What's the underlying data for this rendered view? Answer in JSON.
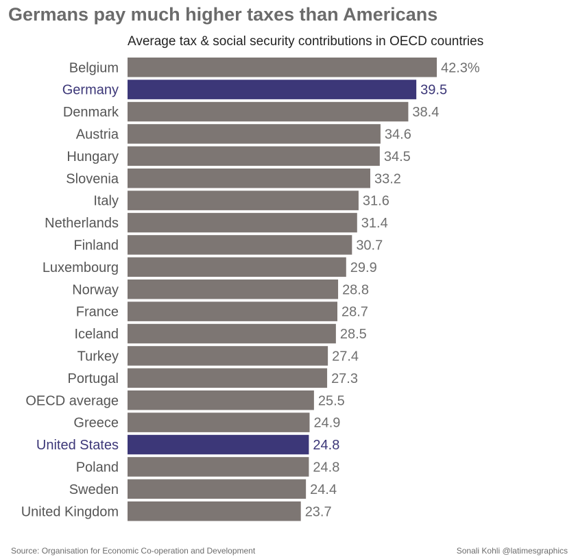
{
  "header": {
    "title": "Germans pay much higher taxes than Americans",
    "subtitle": "Average tax & social security contributions in OECD countries"
  },
  "footer": {
    "source": "Source: Organisation for Economic Co-operation and Development",
    "credit": "Sonali Kohli @latimesgraphics"
  },
  "colors": {
    "bar_default": "#7d7673",
    "bar_highlight": "#3c3778",
    "label_default": "#555555",
    "label_highlight": "#3c3778",
    "value_default": "#6f6f6f",
    "value_highlight": "#3c3778"
  },
  "chart_data": {
    "type": "bar",
    "orientation": "horizontal",
    "title": "Germans pay much higher taxes than Americans",
    "subtitle": "Average tax & social security contributions in OECD countries",
    "categories": [
      "Belgium",
      "Germany",
      "Denmark",
      "Austria",
      "Hungary",
      "Slovenia",
      "Italy",
      "Netherlands",
      "Finland",
      "Luxembourg",
      "Norway",
      "France",
      "Iceland",
      "Turkey",
      "Portugal",
      "OECD average",
      "Greece",
      "United States",
      "Poland",
      "Sweden",
      "United Kingdom"
    ],
    "values": [
      42.3,
      39.5,
      38.4,
      34.6,
      34.5,
      33.2,
      31.6,
      31.4,
      30.7,
      29.9,
      28.8,
      28.7,
      28.5,
      27.4,
      27.3,
      25.5,
      24.9,
      24.8,
      24.8,
      24.4,
      23.7
    ],
    "value_labels": [
      "42.3%",
      "39.5",
      "38.4",
      "34.6",
      "34.5",
      "33.2",
      "31.6",
      "31.4",
      "30.7",
      "29.9",
      "28.8",
      "28.7",
      "28.5",
      "27.4",
      "27.3",
      "25.5",
      "24.9",
      "24.8",
      "24.8",
      "24.4",
      "23.7"
    ],
    "highlighted": [
      "Germany",
      "United States"
    ],
    "xlim": [
      0,
      42.3
    ],
    "xlabel": "",
    "ylabel": "",
    "grid": false,
    "legend": "none"
  }
}
